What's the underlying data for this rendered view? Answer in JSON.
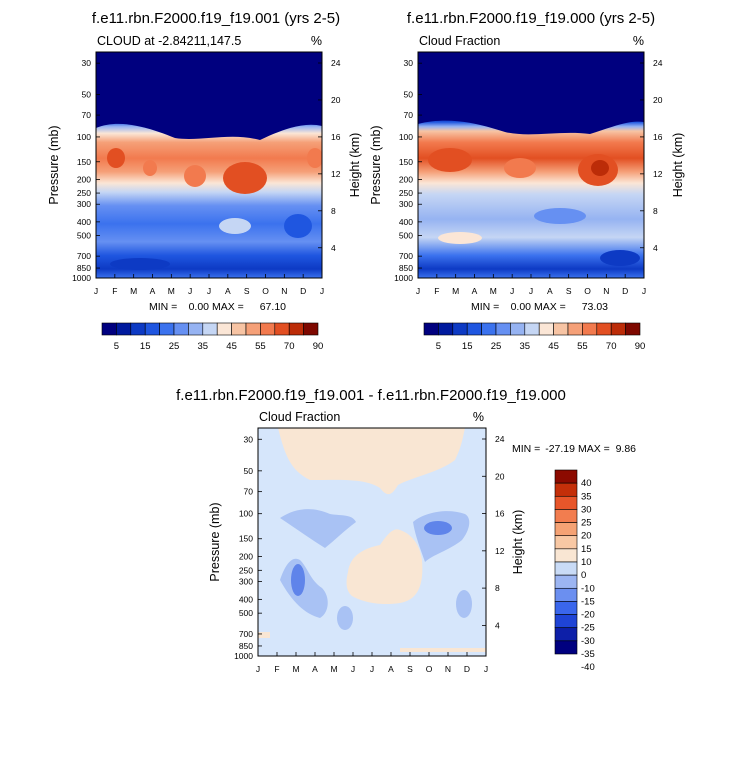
{
  "colors": {
    "palette_main": [
      "#00007f",
      "#001a9e",
      "#0d3ac4",
      "#1f56e0",
      "#3b72ee",
      "#6690f2",
      "#96b3f2",
      "#c5d6f4",
      "#fbe6d6",
      "#f7c4a4",
      "#f5a078",
      "#f27a4e",
      "#e24f22",
      "#bc2c08",
      "#7e0800"
    ],
    "palette_diff": [
      "#00007f",
      "#0d1fa8",
      "#1f44d6",
      "#3a66ec",
      "#6b8ff0",
      "#9cb5f2",
      "#c9dbf6",
      "#f9e6d3",
      "#f8c8a4",
      "#f5a274",
      "#f27d4f",
      "#e8562a",
      "#c42f09",
      "#8c0a00"
    ],
    "frame": "#000000",
    "diff_blue": "#d6e6fb",
    "diff_peach": "#f9e6d3",
    "diff_mid": "#a9c2f4",
    "diff_dark": "#5f84ea"
  },
  "chart_data": [
    {
      "type": "heatmap",
      "title": "f.e11.rbn.F2000.f19_f19.001 (yrs 2-5)",
      "subtitle_left": "CLOUD at -2.84211,147.5",
      "subtitle_right": "%",
      "ylabel": "Pressure (mb)",
      "ylabel_right": "Height (km)",
      "pressure_ticks": [
        "30",
        "50",
        "70",
        "100",
        "150",
        "200",
        "250",
        "300",
        "400",
        "500",
        "700",
        "850",
        "1000"
      ],
      "height_ticks": [
        "24",
        "20",
        "16",
        "12",
        "8",
        "4"
      ],
      "months": [
        "J",
        "F",
        "M",
        "A",
        "M",
        "J",
        "J",
        "A",
        "S",
        "O",
        "N",
        "D",
        "J"
      ],
      "min_label": "MIN =",
      "min_value": "0.00",
      "max_label": "MAX =",
      "max_value": "67.10",
      "colorbar_levels": [
        "5",
        "15",
        "25",
        "35",
        "45",
        "55",
        "70",
        "90"
      ]
    },
    {
      "type": "heatmap",
      "title": "f.e11.rbn.F2000.f19_f19.000 (yrs 2-5)",
      "subtitle_left": "Cloud Fraction",
      "subtitle_right": "%",
      "ylabel": "Pressure (mb)",
      "ylabel_right": "Height (km)",
      "pressure_ticks": [
        "30",
        "50",
        "70",
        "100",
        "150",
        "200",
        "250",
        "300",
        "400",
        "500",
        "700",
        "850",
        "1000"
      ],
      "height_ticks": [
        "24",
        "20",
        "16",
        "12",
        "8",
        "4"
      ],
      "months": [
        "J",
        "F",
        "M",
        "A",
        "M",
        "J",
        "J",
        "A",
        "S",
        "O",
        "N",
        "D",
        "J"
      ],
      "min_label": "MIN =",
      "min_value": "0.00",
      "max_label": "MAX =",
      "max_value": "73.03",
      "colorbar_levels": [
        "5",
        "15",
        "25",
        "35",
        "45",
        "55",
        "70",
        "90"
      ]
    },
    {
      "type": "heatmap",
      "title": "f.e11.rbn.F2000.f19_f19.001 - f.e11.rbn.F2000.f19_f19.000",
      "subtitle_left": "Cloud Fraction",
      "subtitle_right": "%",
      "ylabel": "Pressure (mb)",
      "ylabel_right": "Height (km)",
      "pressure_ticks": [
        "30",
        "50",
        "70",
        "100",
        "150",
        "200",
        "250",
        "300",
        "400",
        "500",
        "700",
        "850",
        "1000"
      ],
      "height_ticks": [
        "24",
        "20",
        "16",
        "12",
        "8",
        "4"
      ],
      "months": [
        "J",
        "F",
        "M",
        "A",
        "M",
        "J",
        "J",
        "A",
        "S",
        "O",
        "N",
        "D",
        "J"
      ],
      "min_label": "MIN =",
      "min_value": "-27.19",
      "max_label": "MAX =",
      "max_value": "9.86",
      "colorbar_levels": [
        "40",
        "35",
        "30",
        "25",
        "20",
        "15",
        "10",
        "0",
        "-10",
        "-15",
        "-20",
        "-25",
        "-30",
        "-35",
        "-40"
      ]
    }
  ]
}
